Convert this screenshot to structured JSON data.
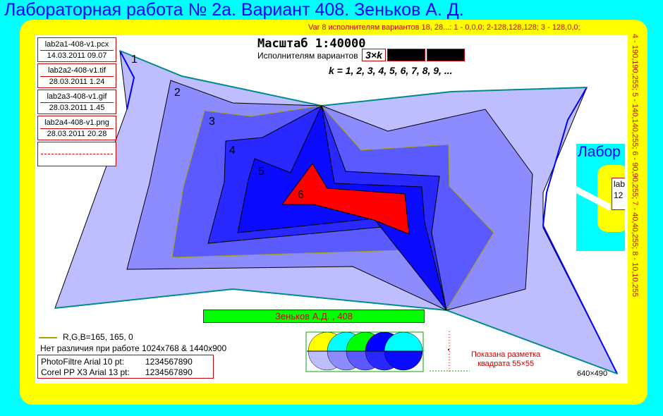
{
  "title": "Лабораторная работа № 2а. Вариант 408. Зеньков А. Д.",
  "var_note_top": "Var 8 исполнителям вариантов 18, 28...: 1 - 0,0,0; 2-128,128,128; 3 - 128,0,0;",
  "var_note_right": "4 - 190,190,255; 5 - 140,140,255; 6 - 90,90,255; 7 - 40,40,255; 8 - 10,10,255",
  "files": [
    {
      "name": "lab2a1-408-v1.pcx",
      "date": "14.03.2011 09.07"
    },
    {
      "name": "lab2a2-408-v1.tif",
      "date": "28.03.2011 1.24"
    },
    {
      "name": "lab2a3-408-v1.gif",
      "date": "28.03.2011 1.45"
    },
    {
      "name": "lab2a4-408-v1.png",
      "date": "28.03.2011 20.28"
    }
  ],
  "scale": "Масштаб 1:40000",
  "executors_label": "Исполнителям вариантов",
  "three_k": "3×k",
  "k_values": "k = 1, 2, 3, 4, 5, 6, 7, 8, 9, ...",
  "layer_labels": [
    "1",
    "2",
    "3",
    "4",
    "5",
    "6"
  ],
  "author": "Зеньков А.Д. , 408",
  "legend_rgb": "R,G,B=165, 165, 0",
  "no_diff": "Нет различия при работе 1024x768 & 1440x900",
  "fonts": [
    {
      "label": "PhotoFiltre  Arial  10 pt:",
      "digits": "1234567890"
    },
    {
      "label": "Corel PP X3  Arial 13 pt:",
      "digits": "1234567890"
    }
  ],
  "markup_text_1": "Показана разметка",
  "markup_text_2": "квадрата 55×55",
  "size_label": "640×490",
  "mini_preview": {
    "title": "Лабор",
    "text_1": "lab",
    "text_2": "12"
  },
  "colors": {
    "background": "#00ffff",
    "frame": "#ffff00",
    "layer1": "#bebeff",
    "layer2": "#8c8cff",
    "layer3": "#5a5aff",
    "layer4": "#2828ff",
    "layer5": "#0a0aff",
    "layer6": "#ff0000",
    "outline": "#008b8b"
  }
}
